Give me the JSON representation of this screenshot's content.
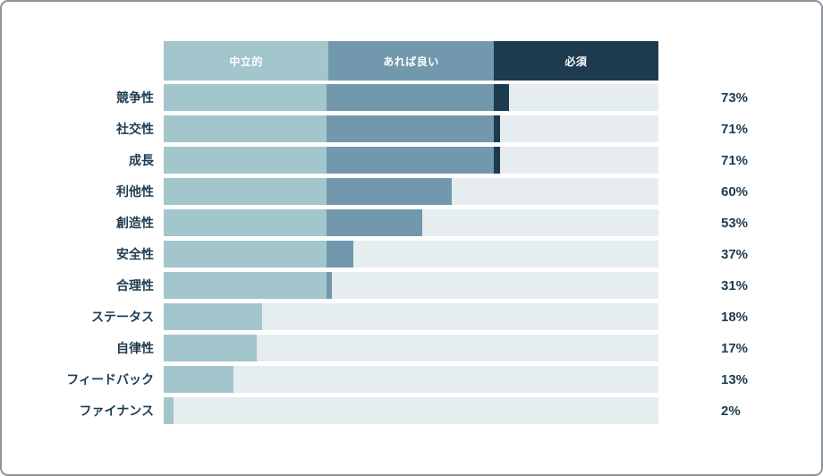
{
  "chart_data": {
    "type": "bar",
    "variant": "horizontal-stacked",
    "legend_position": "top",
    "legend": [
      {
        "id": "neutral",
        "label": "中立的",
        "color": "#a3c6cd"
      },
      {
        "id": "nice-to-have",
        "label": "あれば良い",
        "color": "#7298ad"
      },
      {
        "id": "must",
        "label": "必須",
        "color": "#1d3b4f"
      }
    ],
    "track_color": "#e5edef",
    "xlim": [
      0,
      100
    ],
    "rows": [
      {
        "category": "競争性",
        "percent": 73,
        "percent_label": "73%",
        "segments": [
          33.0,
          33.8,
          3.0
        ]
      },
      {
        "category": "社交性",
        "percent": 71,
        "percent_label": "71%",
        "segments": [
          33.0,
          33.8,
          1.2
        ]
      },
      {
        "category": "成長",
        "percent": 71,
        "percent_label": "71%",
        "segments": [
          33.0,
          33.8,
          1.2
        ]
      },
      {
        "category": "利他性",
        "percent": 60,
        "percent_label": "60%",
        "segments": [
          33.0,
          25.3,
          0
        ]
      },
      {
        "category": "創造性",
        "percent": 53,
        "percent_label": "53%",
        "segments": [
          33.0,
          19.3,
          0
        ]
      },
      {
        "category": "安全性",
        "percent": 37,
        "percent_label": "37%",
        "segments": [
          33.0,
          5.3,
          0
        ]
      },
      {
        "category": "合理性",
        "percent": 31,
        "percent_label": "31%",
        "segments": [
          33.0,
          1.0,
          0
        ]
      },
      {
        "category": "ステータス",
        "percent": 18,
        "percent_label": "18%",
        "segments": [
          19.9,
          0,
          0
        ]
      },
      {
        "category": "自律性",
        "percent": 17,
        "percent_label": "17%",
        "segments": [
          18.8,
          0,
          0
        ]
      },
      {
        "category": "フィードバック",
        "percent": 13,
        "percent_label": "13%",
        "segments": [
          14.1,
          0,
          0
        ]
      },
      {
        "category": "ファイナンス",
        "percent": 2,
        "percent_label": "2%",
        "segments": [
          2.0,
          0,
          0
        ]
      }
    ]
  },
  "colors": {
    "text": "#1e3c50",
    "frame_border": "#909498",
    "background": "#ffffff"
  }
}
